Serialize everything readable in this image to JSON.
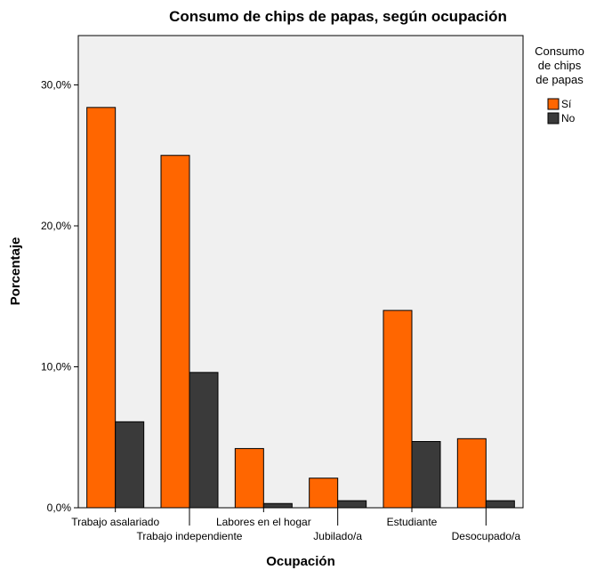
{
  "chart_data": {
    "type": "bar",
    "title": "Consumo de chips de papas, según ocupación",
    "xlabel": "Ocupación",
    "ylabel": "Porcentaje",
    "categories": [
      "Trabajo asalariado",
      "Trabajo independiente",
      "Labores en el hogar",
      "Jubilado/a",
      "Estudiante",
      "Desocupado/a"
    ],
    "series": [
      {
        "name": "Sí",
        "color": "#ff6600",
        "values": [
          28.4,
          25.0,
          4.2,
          2.1,
          14.0,
          4.9
        ]
      },
      {
        "name": "No",
        "color": "#3a3a3a",
        "values": [
          6.1,
          9.6,
          0.3,
          0.5,
          4.7,
          0.5
        ]
      }
    ],
    "ylim": [
      0,
      33.5
    ],
    "yticks": [
      {
        "value": 0,
        "label": "0,0%"
      },
      {
        "value": 10,
        "label": "10,0%"
      },
      {
        "value": 20,
        "label": "20,0%"
      },
      {
        "value": 30,
        "label": "30,0%"
      }
    ],
    "grid": false,
    "plot_background": "#f0f0f0",
    "legend": {
      "title_lines": [
        "Consumo",
        "de chips",
        "de papas"
      ],
      "placement": "right"
    }
  }
}
